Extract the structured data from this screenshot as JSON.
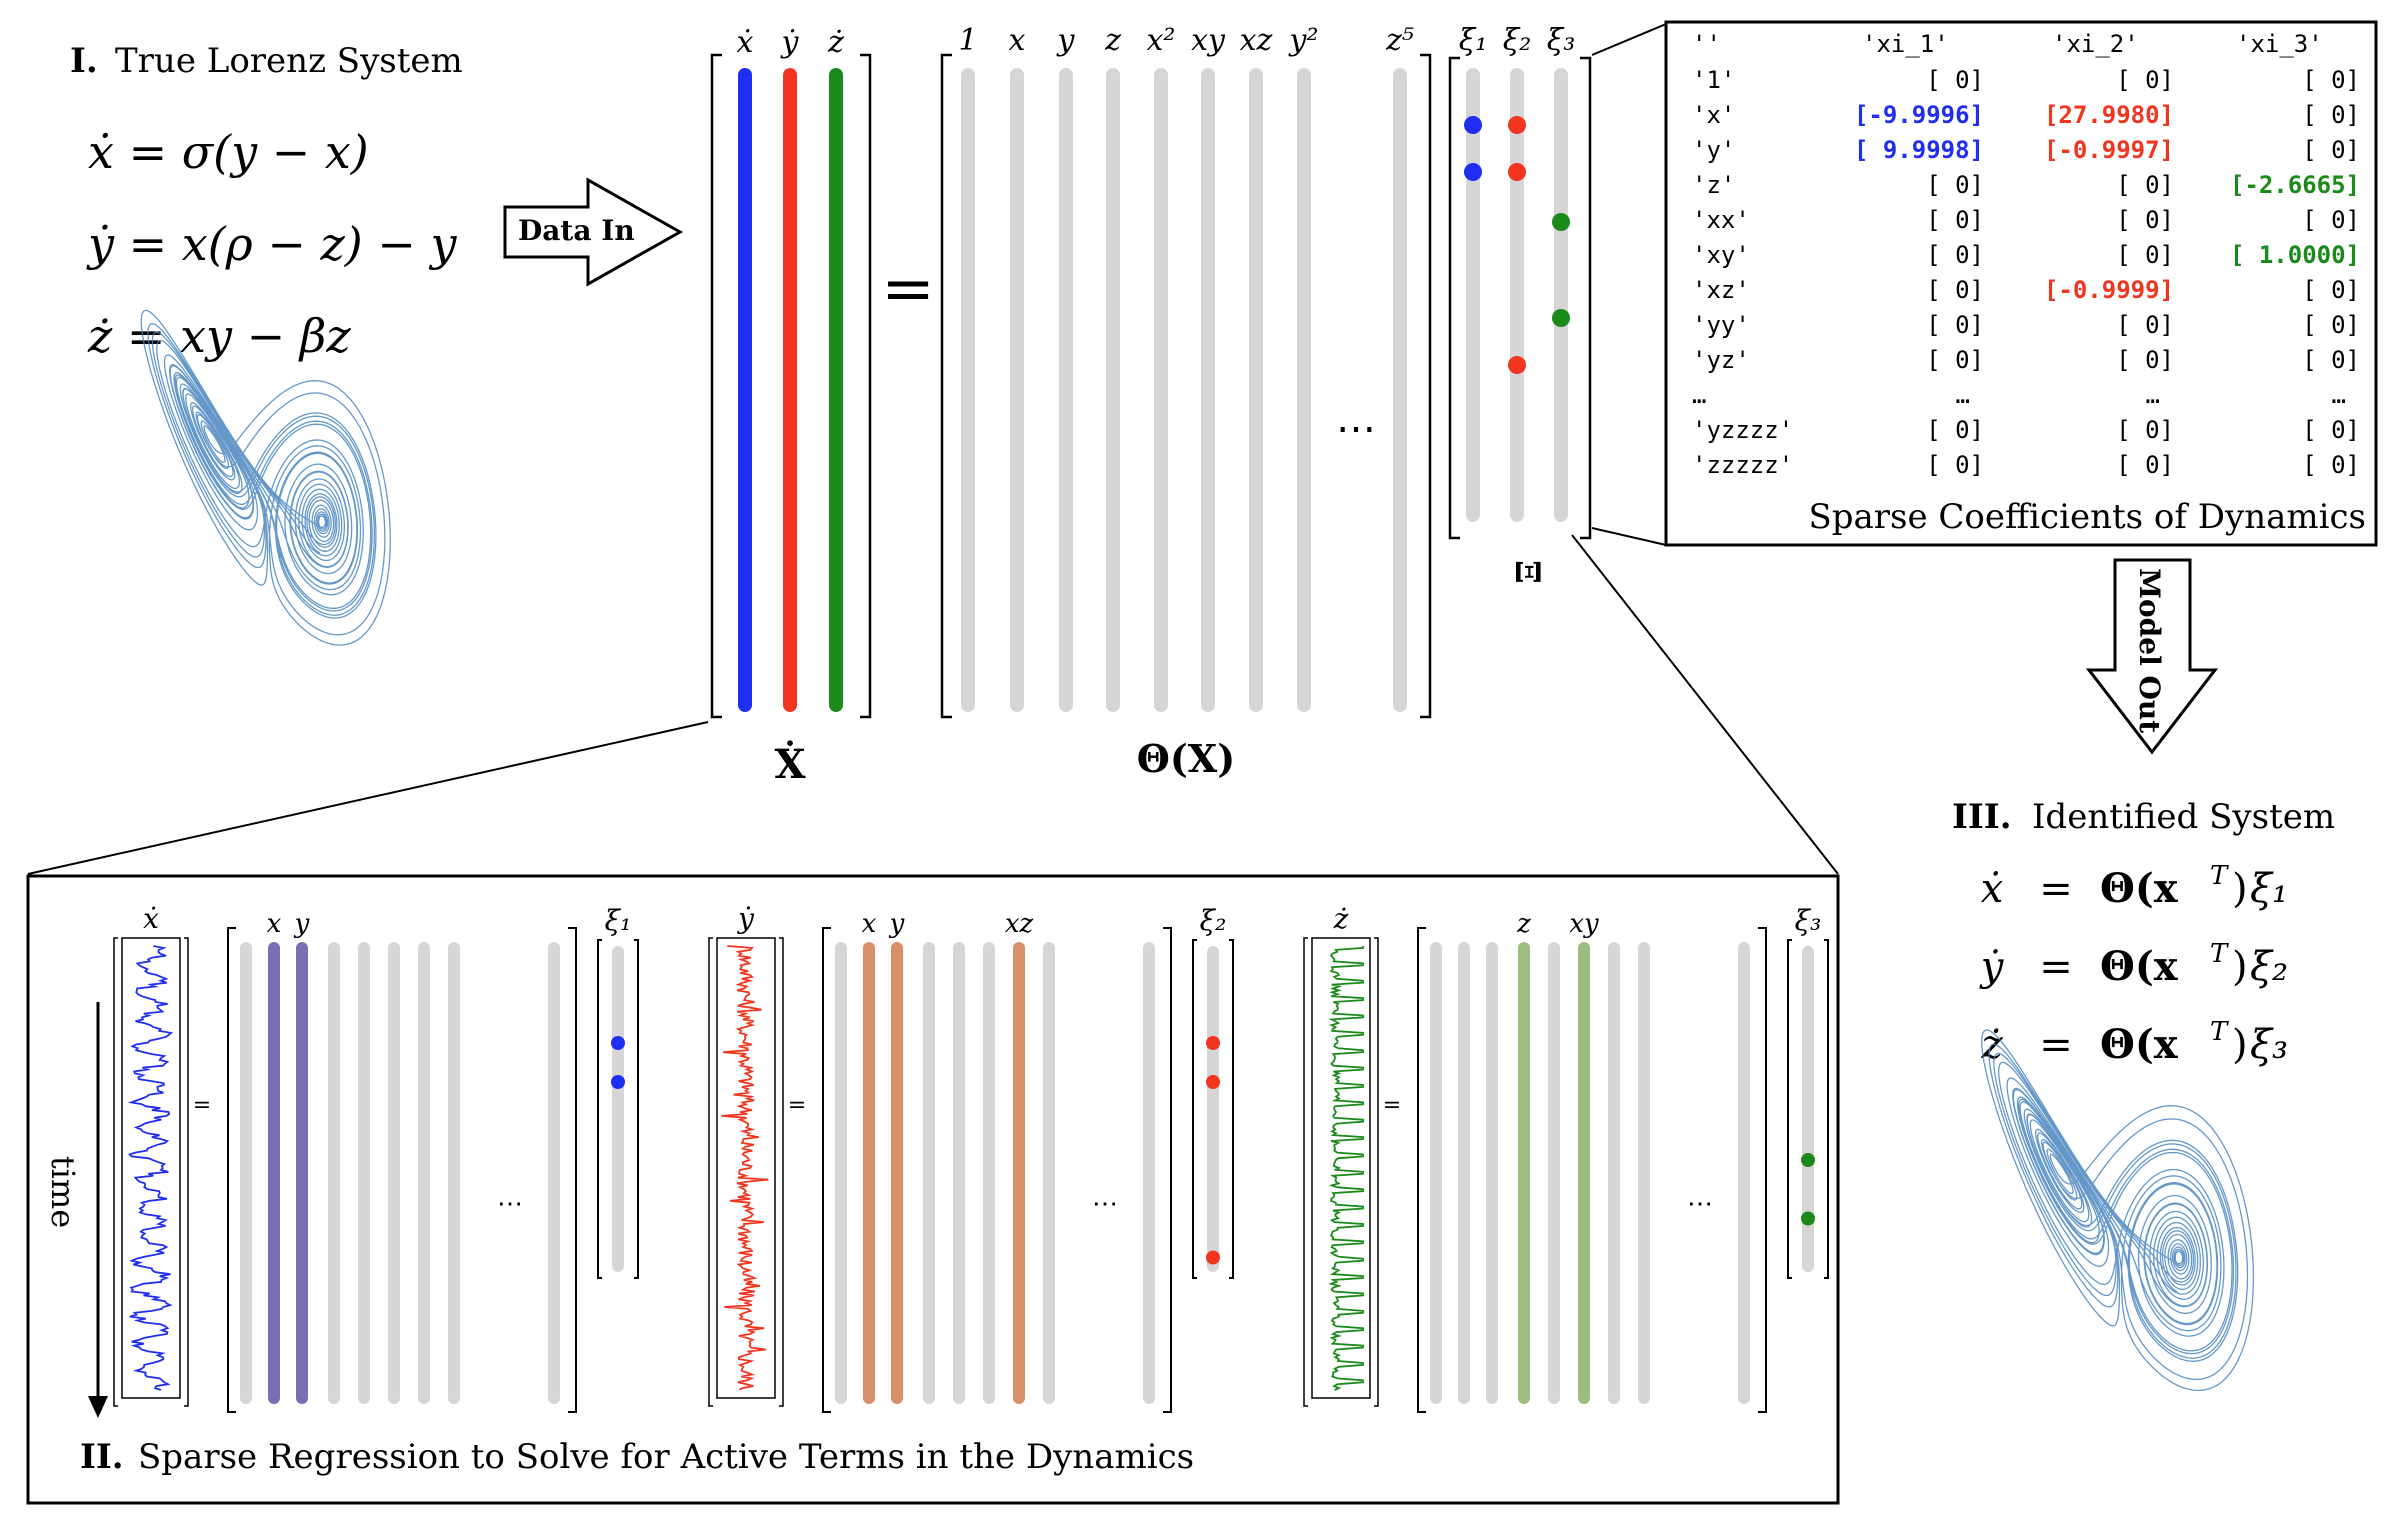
{
  "colors": {
    "x": "#1f2ef0",
    "y": "#f2351f",
    "z": "#1b8a1b",
    "gray": "#d6d6d6",
    "x_term": "#7d6db3",
    "y_term": "#d9906a",
    "z_term": "#9dbd7e",
    "attractor": "#4a86c0"
  },
  "section1": {
    "numeral": "I.",
    "title": "True Lorenz System",
    "eq1": "ẋ = σ(y − x)",
    "eq2": "ẏ = x(ρ − z) − y",
    "eq3": "ż = xy − βz"
  },
  "data_in": "Data In",
  "model_out": "Model Out",
  "top_equation": {
    "deriv_labels": [
      "ẋ",
      "ẏ",
      "ż"
    ],
    "lhs_label": "Ẋ",
    "equals": "=",
    "library_labels": [
      "1",
      "x",
      "y",
      "z",
      "x²",
      "xy",
      "xz",
      "y²",
      "z⁵"
    ],
    "library_ellipsis": "⋯",
    "library_label": "Θ(X)",
    "xi_labels": [
      "ξ₁",
      "ξ₂",
      "ξ₃"
    ],
    "xi_matrix_label": "Ξ"
  },
  "coef_table": {
    "headers": [
      "''",
      "'xi_1'",
      "'xi_2'",
      "'xi_3'"
    ],
    "rows": [
      {
        "term": "'1'",
        "c1": "[ 0]",
        "c2": "[ 0]",
        "c3": "[ 0]",
        "h1": false,
        "h2": false,
        "h3": false
      },
      {
        "term": "'x'",
        "c1": "[-9.9996]",
        "c2": "[27.9980]",
        "c3": "[ 0]",
        "h1": true,
        "h2": true,
        "h3": false
      },
      {
        "term": "'y'",
        "c1": "[ 9.9998]",
        "c2": "[-0.9997]",
        "c3": "[ 0]",
        "h1": true,
        "h2": true,
        "h3": false
      },
      {
        "term": "'z'",
        "c1": "[ 0]",
        "c2": "[ 0]",
        "c3": "[-2.6665]",
        "h1": false,
        "h2": false,
        "h3": true
      },
      {
        "term": "'xx'",
        "c1": "[ 0]",
        "c2": "[ 0]",
        "c3": "[ 0]",
        "h1": false,
        "h2": false,
        "h3": false
      },
      {
        "term": "'xy'",
        "c1": "[ 0]",
        "c2": "[ 0]",
        "c3": "[ 1.0000]",
        "h1": false,
        "h2": false,
        "h3": true
      },
      {
        "term": "'xz'",
        "c1": "[ 0]",
        "c2": "[-0.9999]",
        "c3": "[ 0]",
        "h1": false,
        "h2": true,
        "h3": false
      },
      {
        "term": "'yy'",
        "c1": "[ 0]",
        "c2": "[ 0]",
        "c3": "[ 0]",
        "h1": false,
        "h2": false,
        "h3": false
      },
      {
        "term": "'yz'",
        "c1": "[ 0]",
        "c2": "[ 0]",
        "c3": "[ 0]",
        "h1": false,
        "h2": false,
        "h3": false
      },
      {
        "term": "…",
        "c1": "…",
        "c2": "…",
        "c3": "…",
        "h1": false,
        "h2": false,
        "h3": false
      },
      {
        "term": "'yzzzz'",
        "c1": "[ 0]",
        "c2": "[ 0]",
        "c3": "[ 0]",
        "h1": false,
        "h2": false,
        "h3": false
      },
      {
        "term": "'zzzzz'",
        "c1": "[ 0]",
        "c2": "[ 0]",
        "c3": "[ 0]",
        "h1": false,
        "h2": false,
        "h3": false
      }
    ],
    "caption": "Sparse Coefficients of Dynamics"
  },
  "section3": {
    "numeral": "III.",
    "title": "Identified System",
    "lhs": [
      "ẋ",
      "ẏ",
      "ż"
    ],
    "eq": "=",
    "rhs_prefix": "Θ(x",
    "rhs_sup": "T",
    "rhs_close": ")",
    "rhs_xi": [
      "ξ₁",
      "ξ₂",
      "ξ₃"
    ]
  },
  "section2": {
    "numeral": "II.",
    "title": "Sparse Regression to Solve for Active Terms in the Dynamics",
    "time_label": "time",
    "equals": "=",
    "ellipsis": "⋯",
    "panels": [
      {
        "deriv": "ẋ",
        "active_labels": [
          "x",
          "y"
        ],
        "xi": "ξ₁"
      },
      {
        "deriv": "ẏ",
        "active_labels": [
          "x",
          "y",
          "xz"
        ],
        "xi": "ξ₂"
      },
      {
        "deriv": "ż",
        "active_labels": [
          "z",
          "xy"
        ],
        "xi": "ξ₃"
      }
    ]
  }
}
